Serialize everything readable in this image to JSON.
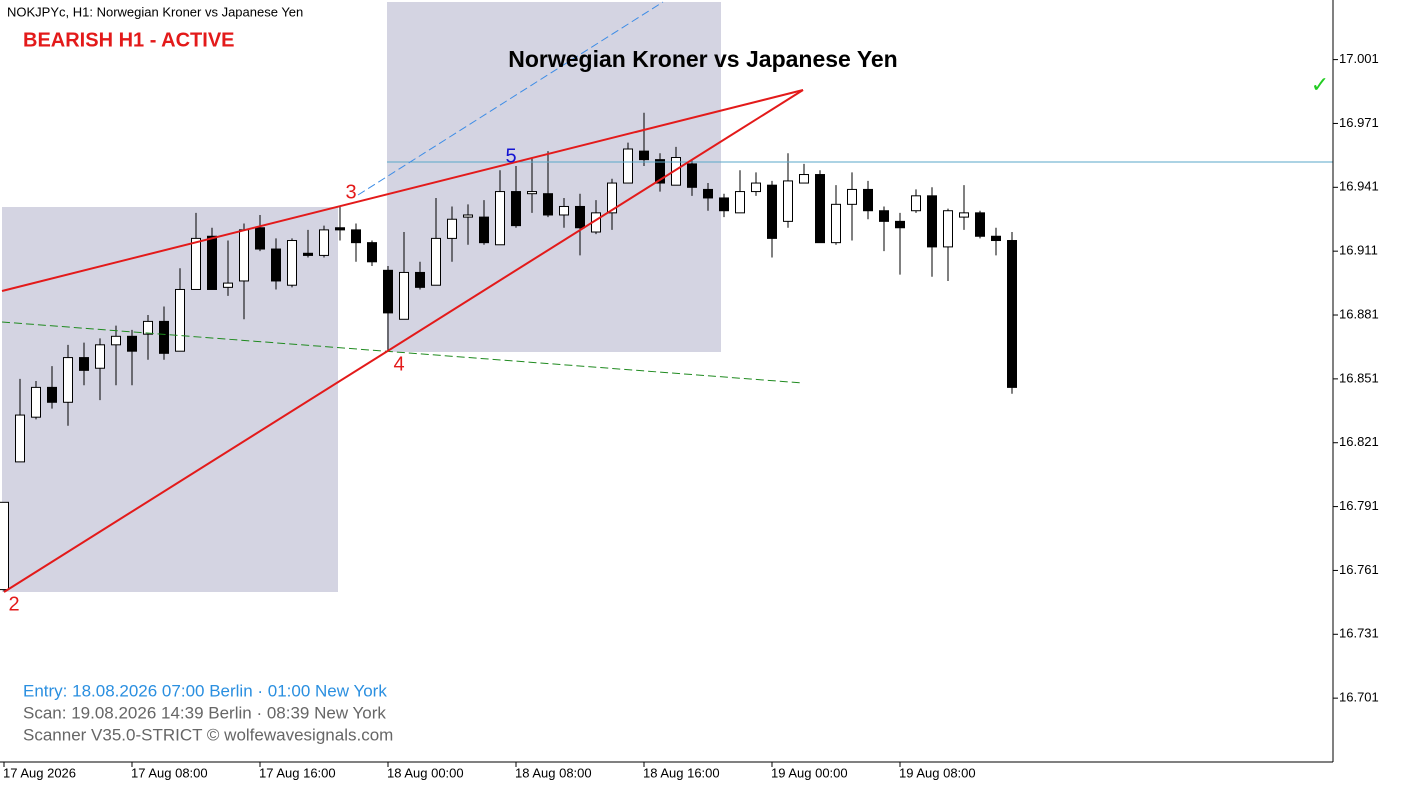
{
  "chart_data": {
    "type": "candlestick",
    "title": "Norwegian Kroner vs Japanese Yen",
    "categories": [
      "17 Aug 2026",
      null,
      null,
      null,
      null,
      null,
      null,
      null,
      "17 Aug 08:00",
      null,
      null,
      null,
      null,
      null,
      null,
      null,
      "17 Aug 16:00",
      null,
      null,
      null,
      null,
      null,
      null,
      null,
      "18 Aug 00:00",
      null,
      null,
      null,
      null,
      null,
      null,
      null,
      "18 Aug 08:00",
      null,
      null,
      null,
      null,
      null,
      null,
      null,
      "18 Aug 16:00",
      null,
      null,
      null,
      null,
      null,
      null,
      null,
      "19 Aug 00:00",
      null,
      null,
      null,
      null,
      null,
      null,
      null,
      "19 Aug 08:00",
      null,
      null,
      null,
      null,
      null,
      null,
      null
    ],
    "open": [
      16.752,
      16.812,
      16.833,
      16.847,
      16.84,
      16.861,
      16.856,
      16.867,
      16.871,
      16.872,
      16.878,
      16.864,
      16.893,
      16.918,
      16.894,
      16.897,
      16.922,
      16.912,
      16.895,
      16.91,
      16.909,
      16.922,
      16.921,
      16.915,
      16.902,
      16.879,
      16.901,
      16.895,
      16.917,
      16.927,
      16.927,
      16.914,
      16.939,
      16.938,
      16.938,
      16.928,
      16.932,
      16.92,
      16.929,
      16.943,
      16.958,
      16.954,
      16.942,
      16.952,
      16.94,
      16.936,
      16.929,
      16.939,
      16.942,
      16.925,
      16.943,
      16.947,
      16.915,
      16.933,
      16.94,
      16.93,
      16.925,
      16.93,
      16.937,
      16.913,
      16.927,
      16.929,
      16.918,
      16.916
    ],
    "high": [
      16.793,
      16.851,
      16.85,
      16.857,
      16.867,
      16.868,
      16.87,
      16.876,
      16.874,
      16.881,
      16.885,
      16.903,
      16.929,
      16.922,
      16.916,
      16.924,
      16.928,
      16.917,
      16.917,
      16.921,
      16.923,
      16.932,
      16.924,
      16.916,
      16.904,
      16.92,
      16.906,
      16.936,
      16.932,
      16.933,
      16.935,
      16.949,
      16.951,
      16.955,
      16.958,
      16.936,
      16.938,
      16.935,
      16.945,
      16.962,
      16.976,
      16.957,
      16.96,
      16.954,
      16.943,
      16.938,
      16.949,
      16.948,
      16.944,
      16.957,
      16.952,
      16.949,
      16.942,
      16.948,
      16.944,
      16.932,
      16.929,
      16.94,
      16.941,
      16.931,
      16.942,
      16.93,
      16.922,
      16.92
    ],
    "low": [
      16.751,
      16.812,
      16.832,
      16.837,
      16.829,
      16.848,
      16.841,
      16.848,
      16.848,
      16.86,
      16.86,
      16.864,
      16.893,
      16.893,
      16.89,
      16.879,
      16.911,
      16.893,
      16.894,
      16.908,
      16.908,
      16.916,
      16.906,
      16.904,
      16.864,
      16.879,
      16.893,
      16.895,
      16.906,
      16.914,
      16.914,
      16.914,
      16.922,
      16.929,
      16.927,
      16.922,
      16.909,
      16.919,
      16.921,
      16.943,
      16.951,
      16.939,
      16.942,
      16.937,
      16.93,
      16.927,
      16.929,
      16.937,
      16.908,
      16.922,
      16.943,
      16.915,
      16.914,
      16.916,
      16.926,
      16.911,
      16.9,
      16.929,
      16.899,
      16.897,
      16.921,
      16.917,
      16.909,
      16.844
    ],
    "close": [
      16.793,
      16.834,
      16.847,
      16.84,
      16.861,
      16.855,
      16.867,
      16.871,
      16.864,
      16.878,
      16.863,
      16.893,
      16.917,
      16.893,
      16.896,
      16.921,
      16.912,
      16.897,
      16.916,
      16.909,
      16.921,
      16.921,
      16.915,
      16.906,
      16.882,
      16.901,
      16.894,
      16.917,
      16.926,
      16.928,
      16.915,
      16.939,
      16.923,
      16.939,
      16.928,
      16.932,
      16.922,
      16.929,
      16.943,
      16.959,
      16.954,
      16.943,
      16.955,
      16.941,
      16.936,
      16.93,
      16.939,
      16.943,
      16.917,
      16.944,
      16.947,
      16.915,
      16.933,
      16.94,
      16.93,
      16.925,
      16.922,
      16.937,
      16.913,
      16.93,
      16.929,
      16.918,
      16.916,
      16.847
    ],
    "ylim": [
      16.671,
      17.029
    ],
    "yticks": [
      17.001,
      16.971,
      16.941,
      16.911,
      16.881,
      16.851,
      16.821,
      16.791,
      16.761,
      16.731,
      16.701
    ],
    "up_color": "#ffffff",
    "down_color": "#000000"
  },
  "overlay": {
    "symbol_line": "NOKJPYc, H1:  Norwegian Kroner vs Japanese Yen",
    "status": "BEARISH H1 - ACTIVE",
    "wave_labels": [
      "2",
      "3",
      "4",
      "5"
    ],
    "checkmark": "✓",
    "footer": [
      "Entry: 18.08.2026  07:00 Berlin · 01:00 New York",
      "Scan:  19.08.2026  14:39 Berlin · 08:39 New York",
      "Scanner V35.0-STRICT   © wolfewavesignals.com"
    ]
  }
}
